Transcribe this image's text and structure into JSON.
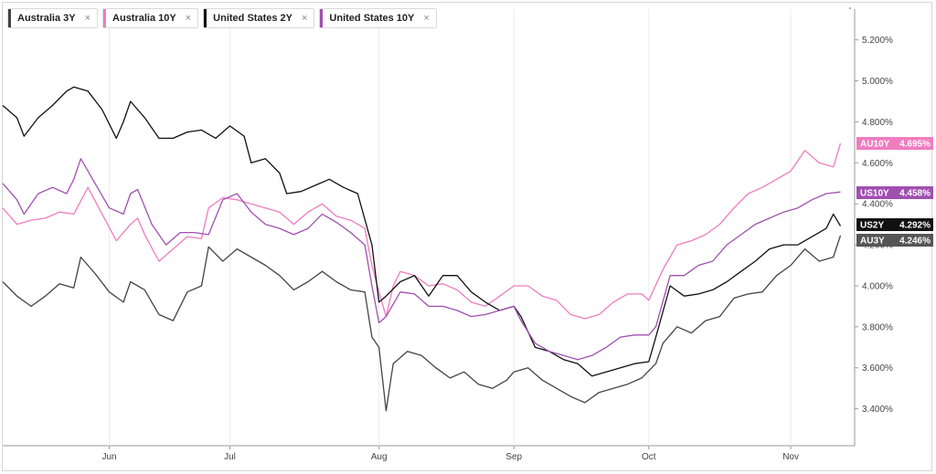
{
  "legend": [
    {
      "label": "Australia 3Y",
      "color": "#444444"
    },
    {
      "label": "Australia 10Y",
      "color": "#f07cc0"
    },
    {
      "label": "United States 2Y",
      "color": "#111111"
    },
    {
      "label": "United States 10Y",
      "color": "#a050b0"
    }
  ],
  "legend_close_glyph": "×",
  "end_labels": [
    {
      "code": "AU10Y",
      "value": "4.695%",
      "bg": "#f07cc0",
      "fg": "#ffffff"
    },
    {
      "code": "US10Y",
      "value": "4.458%",
      "bg": "#a050b0",
      "fg": "#ffffff"
    },
    {
      "code": "US2Y",
      "value": "4.292%",
      "bg": "#111111",
      "fg": "#ffffff"
    },
    {
      "code": "AU3Y",
      "value": "4.246%",
      "bg": "#555555",
      "fg": "#ffffff"
    }
  ],
  "chart_data": {
    "type": "line",
    "ylim": [
      3.22,
      5.35
    ],
    "yticks": [
      "3.400%",
      "3.600%",
      "3.800%",
      "4.000%",
      "4.200%",
      "4.400%",
      "4.600%",
      "4.800%",
      "5.000%",
      "5.200%"
    ],
    "ytick_values": [
      3.4,
      3.6,
      3.8,
      4.0,
      4.2,
      4.4,
      4.6,
      4.8,
      5.0,
      5.2
    ],
    "xlim": [
      0,
      120
    ],
    "xticks": [
      {
        "label": "Jun",
        "x": 15
      },
      {
        "label": "Jul",
        "x": 32
      },
      {
        "label": "Aug",
        "x": 53
      },
      {
        "label": "Sep",
        "x": 72
      },
      {
        "label": "Oct",
        "x": 91
      },
      {
        "label": "Nov",
        "x": 111
      }
    ],
    "grid": false,
    "series": [
      {
        "name": "Australia 3Y",
        "color": "#444444",
        "points": [
          [
            0,
            4.02
          ],
          [
            2,
            3.95
          ],
          [
            4,
            3.9
          ],
          [
            6,
            3.95
          ],
          [
            8,
            4.01
          ],
          [
            10,
            3.99
          ],
          [
            11,
            4.14
          ],
          [
            13,
            4.06
          ],
          [
            15,
            3.97
          ],
          [
            17,
            3.92
          ],
          [
            18,
            4.02
          ],
          [
            20,
            3.98
          ],
          [
            22,
            3.86
          ],
          [
            24,
            3.83
          ],
          [
            26,
            3.97
          ],
          [
            28,
            4.0
          ],
          [
            29,
            4.19
          ],
          [
            31,
            4.12
          ],
          [
            33,
            4.18
          ],
          [
            35,
            4.14
          ],
          [
            37,
            4.1
          ],
          [
            39,
            4.05
          ],
          [
            41,
            3.98
          ],
          [
            43,
            4.02
          ],
          [
            45,
            4.07
          ],
          [
            47,
            4.02
          ],
          [
            49,
            3.98
          ],
          [
            51,
            3.97
          ],
          [
            52,
            3.75
          ],
          [
            53,
            3.7
          ],
          [
            54,
            3.39
          ],
          [
            55,
            3.62
          ],
          [
            57,
            3.68
          ],
          [
            59,
            3.66
          ],
          [
            61,
            3.6
          ],
          [
            63,
            3.55
          ],
          [
            65,
            3.58
          ],
          [
            67,
            3.52
          ],
          [
            69,
            3.5
          ],
          [
            71,
            3.54
          ],
          [
            72,
            3.58
          ],
          [
            74,
            3.6
          ],
          [
            76,
            3.54
          ],
          [
            78,
            3.5
          ],
          [
            80,
            3.46
          ],
          [
            82,
            3.43
          ],
          [
            84,
            3.48
          ],
          [
            86,
            3.5
          ],
          [
            88,
            3.52
          ],
          [
            90,
            3.55
          ],
          [
            92,
            3.62
          ],
          [
            93,
            3.72
          ],
          [
            95,
            3.8
          ],
          [
            97,
            3.77
          ],
          [
            99,
            3.83
          ],
          [
            101,
            3.85
          ],
          [
            103,
            3.94
          ],
          [
            105,
            3.96
          ],
          [
            107,
            3.97
          ],
          [
            109,
            4.05
          ],
          [
            111,
            4.1
          ],
          [
            113,
            4.18
          ],
          [
            115,
            4.12
          ],
          [
            117,
            4.14
          ],
          [
            118,
            4.246
          ]
        ]
      },
      {
        "name": "Australia 10Y",
        "color": "#f07cc0",
        "points": [
          [
            0,
            4.38
          ],
          [
            2,
            4.3
          ],
          [
            4,
            4.32
          ],
          [
            6,
            4.33
          ],
          [
            8,
            4.36
          ],
          [
            10,
            4.35
          ],
          [
            12,
            4.48
          ],
          [
            14,
            4.35
          ],
          [
            16,
            4.22
          ],
          [
            18,
            4.3
          ],
          [
            19,
            4.33
          ],
          [
            20,
            4.25
          ],
          [
            22,
            4.12
          ],
          [
            24,
            4.18
          ],
          [
            26,
            4.24
          ],
          [
            28,
            4.23
          ],
          [
            29,
            4.38
          ],
          [
            31,
            4.43
          ],
          [
            33,
            4.42
          ],
          [
            35,
            4.4
          ],
          [
            37,
            4.38
          ],
          [
            39,
            4.36
          ],
          [
            41,
            4.3
          ],
          [
            43,
            4.36
          ],
          [
            45,
            4.4
          ],
          [
            47,
            4.34
          ],
          [
            49,
            4.32
          ],
          [
            51,
            4.28
          ],
          [
            52,
            4.1
          ],
          [
            53,
            3.97
          ],
          [
            54,
            3.85
          ],
          [
            55,
            4.0
          ],
          [
            56,
            4.07
          ],
          [
            58,
            4.05
          ],
          [
            60,
            4.0
          ],
          [
            62,
            4.01
          ],
          [
            64,
            3.98
          ],
          [
            66,
            3.92
          ],
          [
            68,
            3.9
          ],
          [
            70,
            3.95
          ],
          [
            72,
            4.0
          ],
          [
            74,
            4.0
          ],
          [
            76,
            3.95
          ],
          [
            78,
            3.93
          ],
          [
            80,
            3.86
          ],
          [
            82,
            3.84
          ],
          [
            84,
            3.86
          ],
          [
            86,
            3.92
          ],
          [
            88,
            3.96
          ],
          [
            90,
            3.96
          ],
          [
            91,
            3.93
          ],
          [
            93,
            4.08
          ],
          [
            95,
            4.2
          ],
          [
            97,
            4.22
          ],
          [
            99,
            4.25
          ],
          [
            101,
            4.3
          ],
          [
            103,
            4.38
          ],
          [
            105,
            4.45
          ],
          [
            107,
            4.48
          ],
          [
            109,
            4.52
          ],
          [
            111,
            4.56
          ],
          [
            113,
            4.66
          ],
          [
            115,
            4.6
          ],
          [
            117,
            4.58
          ],
          [
            118,
            4.695
          ]
        ]
      },
      {
        "name": "United States 2Y",
        "color": "#111111",
        "points": [
          [
            0,
            4.88
          ],
          [
            2,
            4.82
          ],
          [
            3,
            4.73
          ],
          [
            5,
            4.82
          ],
          [
            7,
            4.88
          ],
          [
            9,
            4.95
          ],
          [
            10,
            4.97
          ],
          [
            12,
            4.95
          ],
          [
            14,
            4.86
          ],
          [
            16,
            4.72
          ],
          [
            17,
            4.8
          ],
          [
            18,
            4.9
          ],
          [
            20,
            4.82
          ],
          [
            22,
            4.72
          ],
          [
            24,
            4.72
          ],
          [
            26,
            4.75
          ],
          [
            28,
            4.76
          ],
          [
            30,
            4.72
          ],
          [
            32,
            4.78
          ],
          [
            34,
            4.73
          ],
          [
            35,
            4.6
          ],
          [
            37,
            4.62
          ],
          [
            39,
            4.55
          ],
          [
            40,
            4.45
          ],
          [
            42,
            4.46
          ],
          [
            44,
            4.49
          ],
          [
            46,
            4.52
          ],
          [
            48,
            4.48
          ],
          [
            50,
            4.45
          ],
          [
            52,
            4.2
          ],
          [
            53,
            3.92
          ],
          [
            54,
            3.95
          ],
          [
            56,
            4.02
          ],
          [
            58,
            4.05
          ],
          [
            60,
            3.95
          ],
          [
            62,
            4.05
          ],
          [
            64,
            4.05
          ],
          [
            66,
            3.97
          ],
          [
            68,
            3.92
          ],
          [
            70,
            3.88
          ],
          [
            72,
            3.9
          ],
          [
            73,
            3.85
          ],
          [
            75,
            3.7
          ],
          [
            77,
            3.68
          ],
          [
            79,
            3.64
          ],
          [
            81,
            3.62
          ],
          [
            83,
            3.56
          ],
          [
            85,
            3.58
          ],
          [
            87,
            3.6
          ],
          [
            89,
            3.62
          ],
          [
            91,
            3.63
          ],
          [
            92,
            3.75
          ],
          [
            94,
            4.0
          ],
          [
            96,
            3.95
          ],
          [
            98,
            3.96
          ],
          [
            100,
            3.98
          ],
          [
            102,
            4.02
          ],
          [
            104,
            4.07
          ],
          [
            106,
            4.12
          ],
          [
            108,
            4.18
          ],
          [
            110,
            4.2
          ],
          [
            112,
            4.2
          ],
          [
            114,
            4.24
          ],
          [
            116,
            4.28
          ],
          [
            117,
            4.35
          ],
          [
            118,
            4.292
          ]
        ]
      },
      {
        "name": "United States 10Y",
        "color": "#a050b0",
        "points": [
          [
            0,
            4.5
          ],
          [
            2,
            4.42
          ],
          [
            3,
            4.35
          ],
          [
            5,
            4.45
          ],
          [
            7,
            4.48
          ],
          [
            9,
            4.45
          ],
          [
            10,
            4.52
          ],
          [
            11,
            4.62
          ],
          [
            13,
            4.5
          ],
          [
            15,
            4.38
          ],
          [
            17,
            4.35
          ],
          [
            18,
            4.45
          ],
          [
            19,
            4.47
          ],
          [
            21,
            4.3
          ],
          [
            23,
            4.2
          ],
          [
            25,
            4.26
          ],
          [
            27,
            4.26
          ],
          [
            29,
            4.25
          ],
          [
            31,
            4.42
          ],
          [
            33,
            4.45
          ],
          [
            35,
            4.36
          ],
          [
            37,
            4.3
          ],
          [
            39,
            4.28
          ],
          [
            41,
            4.25
          ],
          [
            43,
            4.28
          ],
          [
            45,
            4.35
          ],
          [
            47,
            4.31
          ],
          [
            49,
            4.26
          ],
          [
            51,
            4.2
          ],
          [
            52,
            4.0
          ],
          [
            53,
            3.82
          ],
          [
            54,
            3.85
          ],
          [
            56,
            3.97
          ],
          [
            58,
            3.96
          ],
          [
            60,
            3.9
          ],
          [
            62,
            3.9
          ],
          [
            64,
            3.88
          ],
          [
            66,
            3.85
          ],
          [
            68,
            3.86
          ],
          [
            70,
            3.88
          ],
          [
            72,
            3.9
          ],
          [
            73,
            3.83
          ],
          [
            75,
            3.72
          ],
          [
            77,
            3.68
          ],
          [
            79,
            3.66
          ],
          [
            81,
            3.64
          ],
          [
            83,
            3.66
          ],
          [
            85,
            3.7
          ],
          [
            87,
            3.75
          ],
          [
            89,
            3.76
          ],
          [
            91,
            3.76
          ],
          [
            92,
            3.8
          ],
          [
            94,
            4.05
          ],
          [
            96,
            4.05
          ],
          [
            98,
            4.1
          ],
          [
            100,
            4.12
          ],
          [
            102,
            4.2
          ],
          [
            104,
            4.25
          ],
          [
            106,
            4.3
          ],
          [
            108,
            4.33
          ],
          [
            110,
            4.36
          ],
          [
            112,
            4.38
          ],
          [
            114,
            4.42
          ],
          [
            116,
            4.45
          ],
          [
            118,
            4.458
          ]
        ]
      }
    ]
  }
}
